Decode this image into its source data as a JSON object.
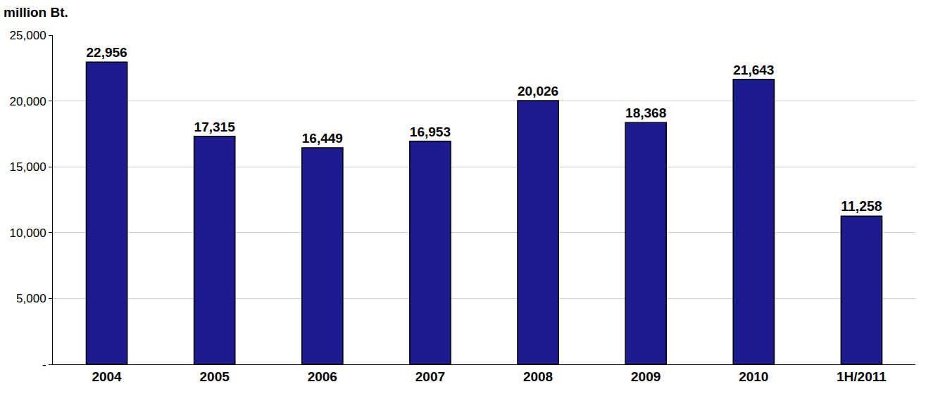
{
  "chart_data": {
    "type": "bar",
    "y_label": "million Bt.",
    "categories": [
      "2004",
      "2005",
      "2006",
      "2007",
      "2008",
      "2009",
      "2010",
      "1H/2011"
    ],
    "values": [
      22956,
      17315,
      16449,
      16953,
      20026,
      18368,
      21643,
      11258
    ],
    "value_labels": [
      "22,956",
      "17,315",
      "16,449",
      "16,953",
      "20,026",
      "18,368",
      "21,643",
      "11,258"
    ],
    "data_labels": true,
    "color": "#1c1c8f",
    "ylim": [
      0,
      25000
    ],
    "yticks": [
      {
        "value": 0,
        "label": "-"
      },
      {
        "value": 5000,
        "label": "5,000"
      },
      {
        "value": 10000,
        "label": "10,000"
      },
      {
        "value": 15000,
        "label": "15,000"
      },
      {
        "value": 20000,
        "label": "20,000"
      },
      {
        "value": 25000,
        "label": "25,000"
      }
    ],
    "grid": true
  }
}
